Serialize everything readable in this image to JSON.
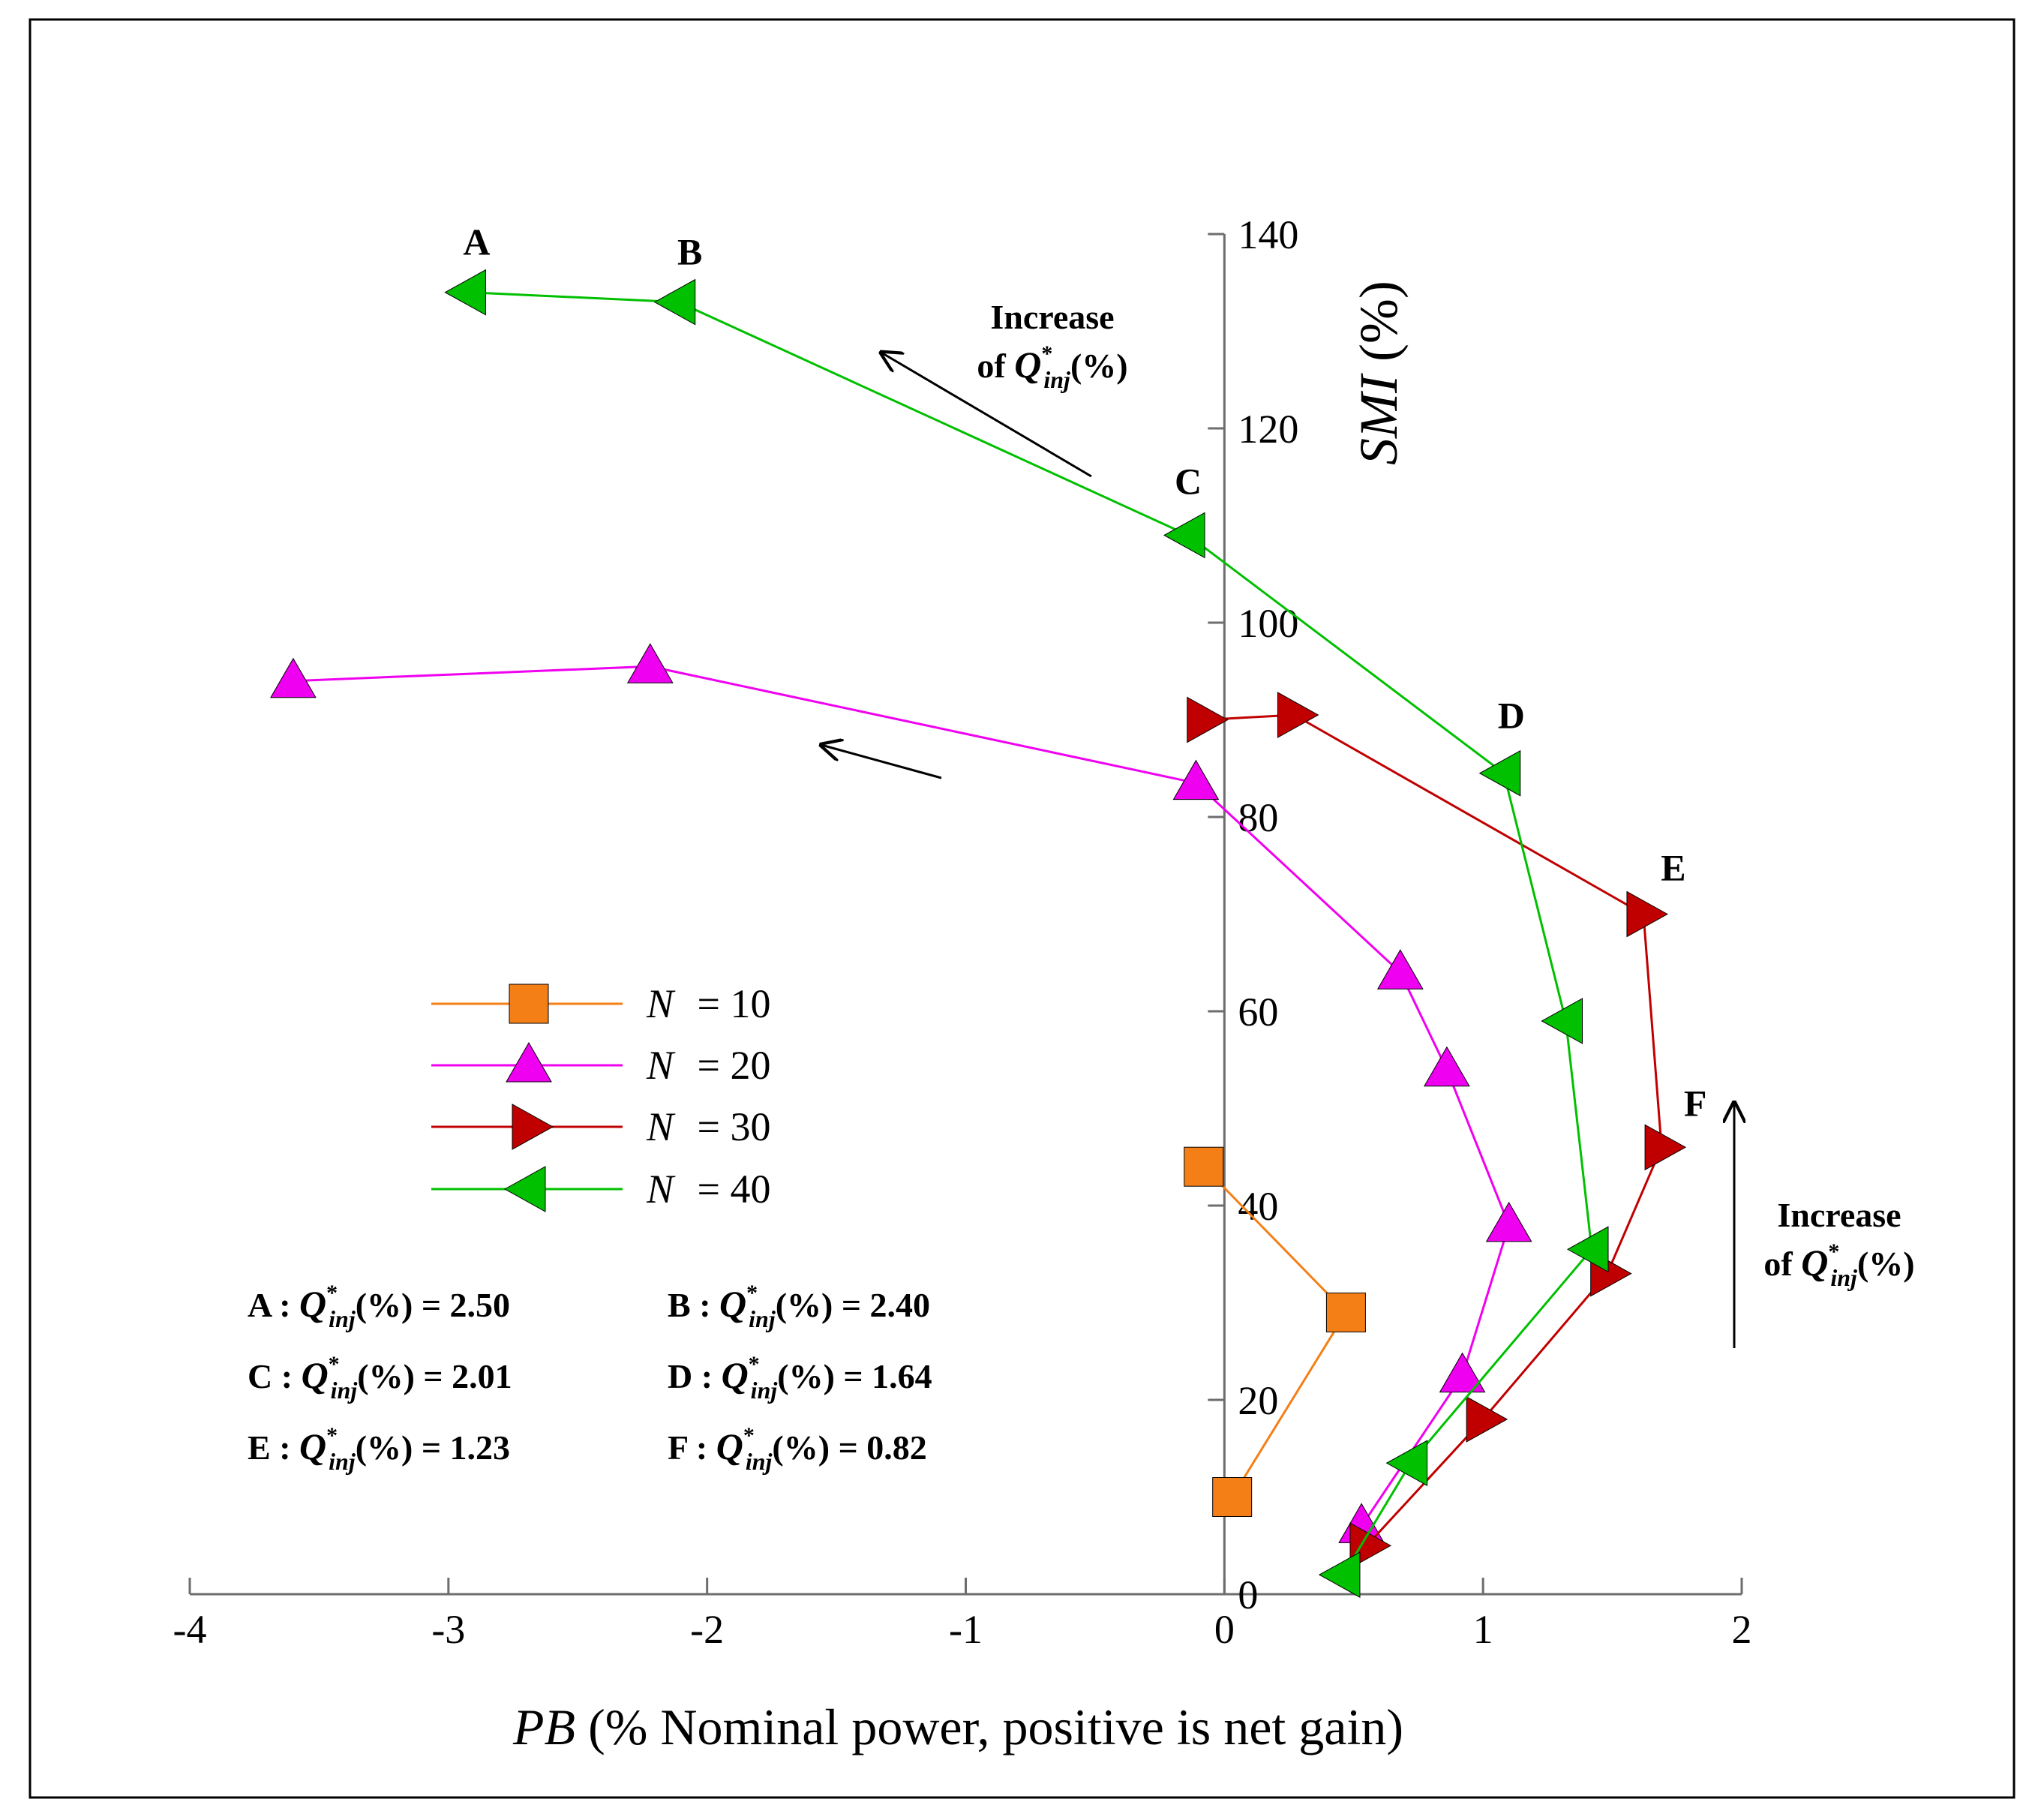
{
  "chart_data": {
    "type": "line",
    "xlabel_italic": "PB",
    "xlabel_rest": " (% Nominal power, positive is net gain)",
    "ylabel_italic": "SMI",
    "ylabel_rest": " (%)",
    "xlim": [
      -4,
      2
    ],
    "ylim": [
      0,
      140
    ],
    "x_ticks": [
      -4,
      -3,
      -2,
      -1,
      0,
      1,
      2
    ],
    "y_ticks": [
      0,
      20,
      40,
      60,
      80,
      100,
      120,
      140
    ],
    "grid": false,
    "legend_position": "middle-left",
    "series": [
      {
        "name": "N = 10",
        "legend_var": "N",
        "legend_value": "= 10",
        "color": "#f57f17",
        "marker": "square",
        "points": [
          [
            -0.08,
            44
          ],
          [
            0.47,
            29
          ],
          [
            0.03,
            10
          ]
        ]
      },
      {
        "name": "N = 20",
        "legend_var": "N",
        "legend_value": "= 20",
        "color": "#f000f0",
        "marker": "triangle-up",
        "points": [
          [
            -3.6,
            94
          ],
          [
            -2.22,
            95.5
          ],
          [
            -0.11,
            83.5
          ],
          [
            0.68,
            64
          ],
          [
            0.86,
            54
          ],
          [
            1.1,
            38
          ],
          [
            0.92,
            22.5
          ],
          [
            0.53,
            7
          ]
        ]
      },
      {
        "name": "N = 30",
        "legend_var": "N",
        "legend_value": "= 30",
        "color": "#c00000",
        "marker": "triangle-right",
        "points": [
          [
            -0.08,
            90
          ],
          [
            0.27,
            90.5
          ],
          [
            1.62,
            70
          ],
          [
            1.69,
            46
          ],
          [
            1.48,
            33
          ],
          [
            1.0,
            18
          ],
          [
            0.55,
            5
          ]
        ]
      },
      {
        "name": "N = 40",
        "legend_var": "N",
        "legend_value": "= 40",
        "color": "#00c000",
        "marker": "triangle-left",
        "points": [
          [
            -2.92,
            134
          ],
          [
            -2.11,
            133
          ],
          [
            -0.14,
            109
          ],
          [
            1.08,
            84.5
          ],
          [
            1.32,
            59
          ],
          [
            1.42,
            35.5
          ],
          [
            0.72,
            13.5
          ],
          [
            0.46,
            2
          ]
        ]
      }
    ],
    "point_labels": [
      {
        "text": "A",
        "x": -2.92,
        "y": 134
      },
      {
        "text": "B",
        "x": -2.11,
        "y": 133
      },
      {
        "text": "C",
        "x": -0.14,
        "y": 109
      },
      {
        "text": "D",
        "x": 1.08,
        "y": 84.5
      },
      {
        "text": "E",
        "x": 1.62,
        "y": 70
      },
      {
        "text": "F",
        "x": 1.69,
        "y": 46
      }
    ],
    "annotations": {
      "top_arrow": {
        "line1": "Increase",
        "line2_prefix": "of ",
        "var": "Q",
        "sup": "*",
        "sub": "inj",
        "suffix": "(%)"
      },
      "right_arrow": {
        "line1": "Increase",
        "line2_prefix": "of ",
        "var": "Q",
        "sup": "*",
        "sub": "inj",
        "suffix": "(%)"
      }
    },
    "q_table": [
      {
        "letter": "A",
        "value": "= 2.50"
      },
      {
        "letter": "B",
        "value": "= 2.40"
      },
      {
        "letter": "C",
        "value": "= 2.01"
      },
      {
        "letter": "D",
        "value": "= 1.64"
      },
      {
        "letter": "E",
        "value": "= 1.23"
      },
      {
        "letter": "F",
        "value": "= 0.82"
      }
    ],
    "q_table_symbol": {
      "var": "Q",
      "sup": "*",
      "sub": "inj",
      "suffix": "(%)"
    }
  }
}
